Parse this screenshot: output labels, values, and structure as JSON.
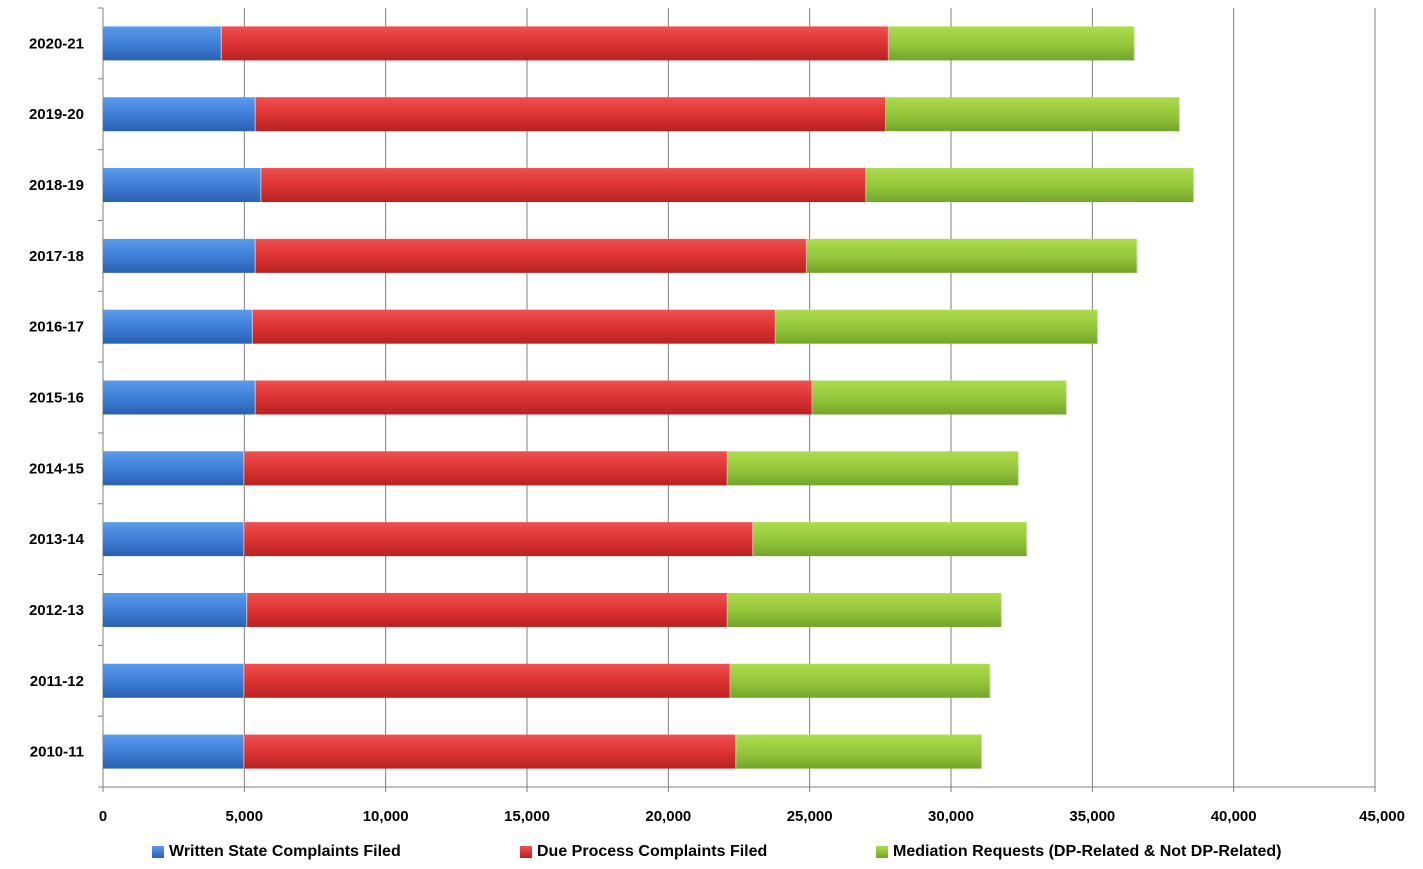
{
  "chart_data": {
    "type": "bar",
    "orientation": "horizontal",
    "stacked": true,
    "categories": [
      "2020-21",
      "2019-20",
      "2018-19",
      "2017-18",
      "2016-17",
      "2015-16",
      "2014-15",
      "2013-14",
      "2012-13",
      "2011-12",
      "2010-11"
    ],
    "series": [
      {
        "name": "Written State Complaints Filed",
        "color": "#4a86d8",
        "values": [
          4200,
          5400,
          5600,
          5400,
          5300,
          5400,
          5000,
          5000,
          5100,
          5000,
          5000
        ]
      },
      {
        "name": "Due Process Complaints Filed",
        "color": "#e23c3c",
        "values": [
          23600,
          22300,
          21400,
          19500,
          18500,
          19700,
          17100,
          18000,
          17000,
          17200,
          17400
        ]
      },
      {
        "name": "Mediation Requests (DP-Related & Not DP-Related)",
        "color": "#9ccc3c",
        "values": [
          8700,
          10400,
          11600,
          11700,
          11400,
          9000,
          10300,
          9700,
          9700,
          9200,
          8700
        ]
      }
    ],
    "xlim": [
      0,
      45000
    ],
    "xticks": [
      0,
      5000,
      10000,
      15000,
      20000,
      25000,
      30000,
      35000,
      40000,
      45000
    ],
    "xtick_labels": [
      "0",
      "5,000",
      "10,000",
      "15,000",
      "20,000",
      "25,000",
      "30,000",
      "35,000",
      "40,000",
      "45,000"
    ],
    "grid": "vertical",
    "legend": "bottom",
    "title": "",
    "xlabel": "",
    "ylabel": ""
  }
}
